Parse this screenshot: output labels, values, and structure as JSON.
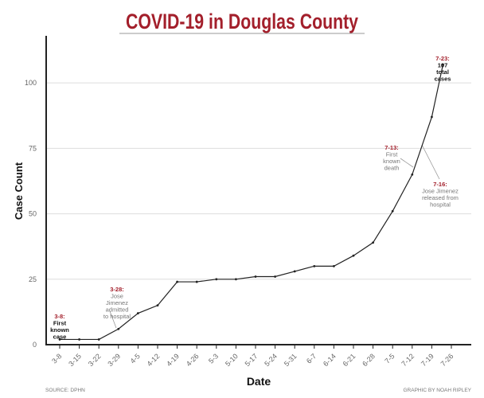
{
  "chart_data": {
    "type": "line",
    "title": "COVID-19 in Douglas County",
    "xlabel": "Date",
    "ylabel": "Case Count",
    "ylim": [
      0,
      118
    ],
    "yticks": [
      0,
      25,
      50,
      75,
      100
    ],
    "grid": true,
    "x_tick_labels": [
      "3-8",
      "3-15",
      "3-22",
      "3-29",
      "4-5",
      "4-12",
      "4-19",
      "4-26",
      "5-3",
      "5-10",
      "5-17",
      "5-24",
      "5-31",
      "6-7",
      "6-14",
      "6-21",
      "6-28",
      "7-5",
      "7-12",
      "7-19",
      "7-26"
    ],
    "points": [
      {
        "x": "3-8",
        "y": 2
      },
      {
        "x": "3-15",
        "y": 2
      },
      {
        "x": "3-22",
        "y": 2
      },
      {
        "x": "3-29",
        "y": 6
      },
      {
        "x": "4-5",
        "y": 12
      },
      {
        "x": "4-12",
        "y": 15
      },
      {
        "x": "4-19",
        "y": 24
      },
      {
        "x": "4-26",
        "y": 24
      },
      {
        "x": "5-3",
        "y": 25
      },
      {
        "x": "5-10",
        "y": 25
      },
      {
        "x": "5-17",
        "y": 26
      },
      {
        "x": "5-24",
        "y": 26
      },
      {
        "x": "5-31",
        "y": 28
      },
      {
        "x": "6-7",
        "y": 30
      },
      {
        "x": "6-14",
        "y": 30
      },
      {
        "x": "6-21",
        "y": 34
      },
      {
        "x": "6-28",
        "y": 39
      },
      {
        "x": "7-5",
        "y": 51
      },
      {
        "x": "7-12",
        "y": 65
      },
      {
        "x": "7-19",
        "y": 87
      },
      {
        "x": "7-23",
        "y": 107
      }
    ],
    "line_color": "#222222",
    "accent_color": "#a31f2b",
    "annotations": [
      {
        "date": "3-8:",
        "lines": [
          "First",
          "known",
          "case"
        ],
        "style": "dark"
      },
      {
        "date": "3-28:",
        "lines": [
          "Jose",
          "Jimenez",
          "admitted",
          "to hospital"
        ],
        "style": "gray"
      },
      {
        "date": "7-13:",
        "lines": [
          "First",
          "known",
          "death"
        ],
        "style": "gray"
      },
      {
        "date": "7-16:",
        "lines": [
          "Jose Jimenez",
          "released from",
          "hospital"
        ],
        "style": "gray"
      },
      {
        "date": "7-23:",
        "lines": [
          "107",
          "total",
          "cases"
        ],
        "style": "dark"
      }
    ]
  },
  "footer": {
    "source": "SOURCE: DPHN",
    "credit": "GRAPHIC BY NOAH RIPLEY"
  }
}
